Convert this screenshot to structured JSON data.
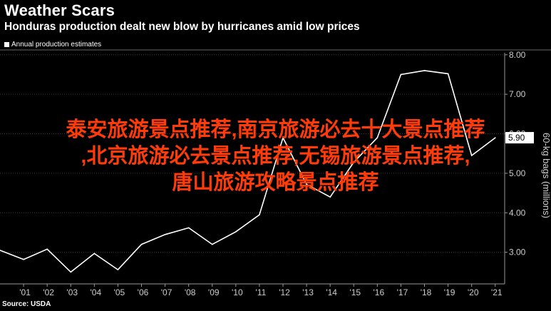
{
  "header": {
    "title": "Weather Scars",
    "subtitle": "Honduras production dealt new blow by hurricanes amid low prices"
  },
  "legend": {
    "label": "Annual production estimates"
  },
  "source": "Source: USDA",
  "overlay": {
    "line1": "泰安旅游景点推荐,南京旅游必去十大景点推荐",
    "line2": ",北京旅游必去景点推荐,无锡旅游景点推荐,",
    "line3": "唐山旅游攻略景点推荐",
    "color": "#ff3b0a"
  },
  "chart_data": {
    "type": "line",
    "title": "Weather Scars",
    "subtitle": "Honduras production dealt new blow by hurricanes amid low prices",
    "ylabel": "60-kg bags (millions)",
    "ylim": [
      2.2,
      8.05
    ],
    "xlim": [
      2000,
      2021.4
    ],
    "y_ticks": [
      "3.00",
      "4.00",
      "5.00",
      "6.00",
      "7.00",
      "8.00"
    ],
    "x_ticks": [
      "'01",
      "'02",
      "'03",
      "'04",
      "'05",
      "'06",
      "'07",
      "'08",
      "'09",
      "'10",
      "'11",
      "'12",
      "'13",
      "'14",
      "'15",
      "'16",
      "'17",
      "'18",
      "'19",
      "'20",
      "'21"
    ],
    "legend_position": "top-left",
    "grid": true,
    "series": [
      {
        "name": "Annual production estimates",
        "color": "#ffffff",
        "x": [
          2000,
          2001,
          2002,
          2003,
          2004,
          2005,
          2006,
          2007,
          2008,
          2009,
          2010,
          2011,
          2012,
          2013,
          2014,
          2015,
          2016,
          2017,
          2018,
          2019,
          2020,
          2021
        ],
        "y": [
          3.05,
          2.82,
          3.08,
          2.5,
          2.97,
          2.56,
          3.2,
          3.45,
          3.62,
          3.2,
          3.52,
          3.95,
          5.9,
          4.72,
          4.4,
          5.28,
          5.9,
          7.5,
          7.6,
          7.52,
          5.45,
          5.9
        ]
      }
    ],
    "last_value_label": "5.90",
    "axis_color": "#999999",
    "grid_color": "#3a3a3a",
    "text_color": "#cccccc"
  }
}
